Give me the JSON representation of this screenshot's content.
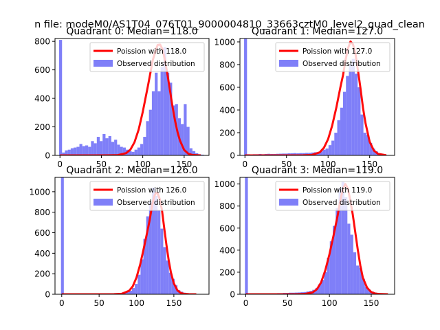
{
  "figure": {
    "suptitle": "n file: modeM0/AS1T04_076T01_9000004810_33663cztM0_level2_quad_clean"
  },
  "colors": {
    "hist": "#7f7ff8",
    "poisson": "#ff0000",
    "axis": "#000000"
  },
  "chart_data": [
    {
      "type": "bar",
      "quadrant": 0,
      "title": "Quadrant 0: Median=118.0",
      "xlim": [
        -6,
        180
      ],
      "ylim": [
        0,
        820
      ],
      "xticks": [
        0,
        50,
        100,
        150
      ],
      "yticks": [
        0,
        200,
        400,
        600,
        800
      ],
      "legend": {
        "location": "top-right",
        "entries": [
          "Poission with 118.0",
          "Observed distribution"
        ]
      },
      "histogram": {
        "bin_width": 3.5,
        "bins_start": [
          -1,
          2.5,
          6,
          9.5,
          13,
          16.5,
          20,
          23.5,
          27,
          30.5,
          34,
          37.5,
          41,
          44.5,
          48,
          51.5,
          55,
          58.5,
          62,
          65.5,
          69,
          72.5,
          76,
          79.5,
          83,
          86.5,
          90,
          93.5,
          97,
          100.5,
          104,
          107.5,
          111,
          114.5,
          118,
          121.5,
          125,
          128.5,
          132,
          135.5,
          139,
          142.5,
          146,
          149.5,
          153,
          156.5,
          160,
          163.5,
          167,
          170.5
        ],
        "counts": [
          810,
          20,
          35,
          40,
          50,
          55,
          60,
          80,
          65,
          70,
          60,
          100,
          85,
          130,
          100,
          150,
          120,
          135,
          95,
          110,
          75,
          60,
          55,
          40,
          30,
          25,
          40,
          55,
          80,
          130,
          240,
          320,
          450,
          580,
          450,
          620,
          760,
          580,
          510,
          350,
          360,
          260,
          220,
          360,
          200,
          50,
          30,
          15,
          8,
          5
        ]
      },
      "poisson": {
        "label": "Poission with 118.0",
        "mean": 118.0,
        "x": [
          0,
          20,
          40,
          60,
          70,
          80,
          85,
          90,
          95,
          100,
          103,
          106,
          109,
          112,
          115,
          118,
          121,
          124,
          127,
          130,
          133,
          136,
          139,
          142,
          145,
          150,
          155,
          160,
          170
        ],
        "values": [
          0,
          0,
          0,
          0.5,
          2,
          16,
          40,
          92,
          180,
          305,
          393,
          480,
          572,
          666,
          725,
          775,
          777,
          742,
          662,
          562,
          451,
          340,
          243,
          163,
          103,
          38,
          12,
          3,
          0
        ]
      }
    },
    {
      "type": "bar",
      "quadrant": 1,
      "title": "Quadrant 1: Median=127.0",
      "xlim": [
        -6,
        180
      ],
      "ylim": [
        0,
        1030
      ],
      "xticks": [
        0,
        50,
        100,
        150
      ],
      "yticks": [
        0,
        200,
        400,
        600,
        800,
        1000
      ],
      "legend": {
        "location": "top-right",
        "entries": [
          "Poission with 127.0",
          "Observed distribution"
        ]
      },
      "histogram": {
        "bin_width": 3.5,
        "bins_start": [
          -1,
          2.5,
          6,
          9.5,
          13,
          16.5,
          20,
          23.5,
          27,
          30.5,
          34,
          37.5,
          41,
          44.5,
          48,
          51.5,
          55,
          58.5,
          62,
          65.5,
          69,
          72.5,
          76,
          79.5,
          83,
          86.5,
          90,
          93.5,
          97,
          100.5,
          104,
          107.5,
          111,
          114.5,
          118,
          121.5,
          125,
          128.5,
          132,
          135.5,
          139,
          142.5,
          146,
          149.5,
          153,
          156.5,
          160,
          163.5,
          167,
          170.5
        ],
        "counts": [
          1030,
          10,
          8,
          10,
          10,
          12,
          10,
          12,
          14,
          12,
          12,
          14,
          15,
          16,
          16,
          18,
          18,
          20,
          18,
          20,
          20,
          22,
          22,
          25,
          28,
          20,
          35,
          50,
          60,
          90,
          130,
          200,
          310,
          420,
          560,
          700,
          800,
          850,
          720,
          600,
          360,
          200,
          180,
          110,
          60,
          35,
          15,
          8,
          5,
          3
        ]
      },
      "poisson": {
        "label": "Poission with 127.0",
        "mean": 127.0,
        "x": [
          0,
          20,
          40,
          60,
          70,
          80,
          90,
          95,
          100,
          105,
          110,
          115,
          118,
          121,
          124,
          127,
          130,
          133,
          136,
          139,
          142,
          145,
          150,
          155,
          160,
          170
        ],
        "values": [
          0,
          0,
          0,
          0,
          0.5,
          3,
          27,
          67,
          143,
          265,
          424,
          608,
          708,
          841,
          944,
          1004,
          978,
          890,
          744,
          589,
          417,
          284,
          120,
          43,
          14,
          1
        ]
      }
    },
    {
      "type": "bar",
      "quadrant": 2,
      "title": "Quadrant 2: Median=126.0",
      "xlim": [
        -9,
        197
      ],
      "ylim": [
        0,
        1140
      ],
      "xticks": [
        0,
        50,
        100,
        150
      ],
      "yticks": [
        0,
        200,
        400,
        600,
        800,
        1000
      ],
      "legend": {
        "location": "top-right",
        "entries": [
          "Poission with 126.0",
          "Observed distribution"
        ]
      },
      "histogram": {
        "bin_width": 3.8,
        "bins_start": [
          -1,
          2.8,
          6.6,
          10.4,
          14.2,
          18,
          21.8,
          25.6,
          29.4,
          33.2,
          37,
          40.8,
          44.6,
          48.4,
          52.2,
          56,
          59.8,
          63.6,
          67.4,
          71.2,
          75,
          78.8,
          82.6,
          86.4,
          90.2,
          94,
          97.8,
          101.6,
          105.4,
          109.2,
          113,
          116.8,
          120.6,
          124.4,
          128.2,
          132,
          135.8,
          139.6,
          143.4,
          147.2,
          151,
          154.8,
          158.6,
          162.4,
          166.2,
          170,
          173.8,
          177.6,
          181.4,
          185.2
        ],
        "counts": [
          1140,
          4,
          3,
          4,
          3,
          4,
          4,
          4,
          5,
          4,
          5,
          5,
          6,
          6,
          6,
          7,
          7,
          8,
          8,
          10,
          10,
          12,
          16,
          22,
          35,
          60,
          100,
          190,
          340,
          540,
          760,
          900,
          1040,
          960,
          820,
          640,
          460,
          330,
          210,
          150,
          90,
          40,
          25,
          15,
          10,
          6,
          4,
          3,
          2,
          1
        ]
      },
      "poisson": {
        "label": "Poission with 126.0",
        "mean": 126.0,
        "x": [
          0,
          20,
          40,
          60,
          70,
          80,
          90,
          95,
          100,
          105,
          110,
          115,
          118,
          121,
          124,
          126,
          128,
          131,
          134,
          137,
          140,
          143,
          146,
          150,
          155,
          160,
          165,
          170,
          180
        ],
        "values": [
          0,
          0,
          0,
          0,
          1,
          4,
          33,
          77,
          163,
          292,
          456,
          628,
          737,
          871,
          960,
          987,
          990,
          931,
          825,
          652,
          485,
          335,
          215,
          105,
          35,
          10,
          3,
          1,
          0
        ]
      }
    },
    {
      "type": "bar",
      "quadrant": 3,
      "title": "Quadrant 3: Median=119.0",
      "xlim": [
        -7,
        178
      ],
      "ylim": [
        0,
        1060
      ],
      "xticks": [
        0,
        50,
        100,
        150
      ],
      "yticks": [
        0,
        200,
        400,
        600,
        800,
        1000
      ],
      "legend": {
        "location": "top-right",
        "entries": [
          "Poission with 119.0",
          "Observed distribution"
        ]
      },
      "histogram": {
        "bin_width": 3.5,
        "bins_start": [
          -1,
          2.5,
          6,
          9.5,
          13,
          16.5,
          20,
          23.5,
          27,
          30.5,
          34,
          37.5,
          41,
          44.5,
          48,
          51.5,
          55,
          58.5,
          62,
          65.5,
          69,
          72.5,
          76,
          79.5,
          83,
          86.5,
          90,
          93.5,
          97,
          100.5,
          104,
          107.5,
          111,
          114.5,
          118,
          121.5,
          125,
          128.5,
          132,
          135.5,
          139,
          142.5,
          146,
          149.5,
          153,
          156.5,
          160,
          163.5
        ],
        "counts": [
          1060,
          5,
          5,
          5,
          5,
          6,
          6,
          6,
          7,
          8,
          8,
          10,
          10,
          12,
          12,
          14,
          14,
          15,
          16,
          18,
          20,
          25,
          30,
          40,
          55,
          90,
          130,
          200,
          330,
          480,
          620,
          780,
          960,
          1020,
          880,
          640,
          540,
          380,
          260,
          240,
          140,
          70,
          40,
          25,
          15,
          10,
          6,
          3
        ]
      },
      "poisson": {
        "label": "Poission with 119.0",
        "mean": 119.0,
        "x": [
          0,
          20,
          40,
          60,
          70,
          80,
          85,
          90,
          95,
          100,
          105,
          110,
          113,
          116,
          119,
          122,
          125,
          128,
          131,
          134,
          137,
          140,
          145,
          150,
          155,
          160,
          170
        ],
        "values": [
          0,
          0,
          0,
          0,
          2,
          17,
          45,
          106,
          215,
          361,
          534,
          720,
          850,
          950,
          1000,
          960,
          850,
          720,
          560,
          400,
          260,
          150,
          60,
          20,
          6,
          2,
          0
        ]
      }
    }
  ]
}
